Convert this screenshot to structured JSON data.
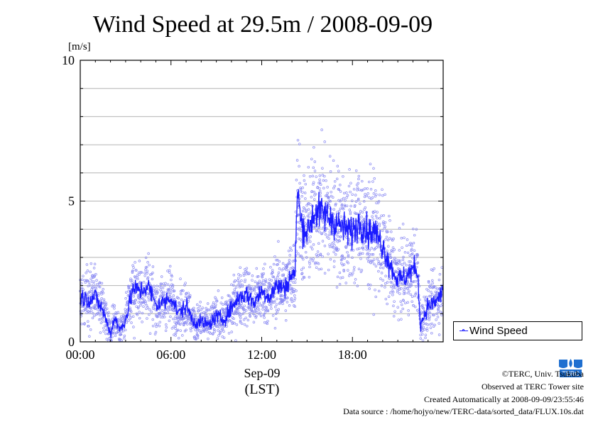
{
  "chart_data": {
    "type": "scatter",
    "title": "Wind Speed at 29.5m / 2008-09-09",
    "yunit": "[m/s]",
    "xlabel_date": "Sep-09",
    "xlabel_tz": "(LST)",
    "xlim_hours": [
      0,
      24
    ],
    "ylim": [
      0,
      10
    ],
    "x_ticks": [
      "00:00",
      "06:00",
      "12:00",
      "18:00"
    ],
    "y_ticks": [
      "0",
      "5",
      "10"
    ],
    "grid": true,
    "legend_position": "right",
    "series": [
      {
        "name": "Wind Speed",
        "color": "#1a1aff",
        "profile_hours": [
          0,
          0.5,
          1,
          1.5,
          2,
          2.3,
          2.6,
          3,
          3.5,
          4,
          4.5,
          5,
          5.5,
          6,
          6.5,
          7,
          7.5,
          8,
          8.5,
          9,
          9.5,
          10,
          10.5,
          11,
          11.5,
          12,
          12.5,
          13,
          13.5,
          14,
          14.2,
          14.35,
          14.6,
          15,
          15.5,
          16,
          16.5,
          17,
          17.5,
          18,
          18.5,
          19,
          19.5,
          20,
          20.5,
          21,
          21.5,
          22,
          22.3,
          22.5,
          23,
          23.5,
          24
        ],
        "profile_values": [
          1.6,
          1.5,
          1.6,
          1.1,
          0.3,
          0.9,
          0.4,
          0.8,
          1.9,
          1.8,
          2.0,
          1.3,
          1.4,
          1.6,
          1.0,
          1.3,
          0.7,
          0.7,
          0.6,
          0.9,
          0.8,
          1.2,
          1.6,
          1.7,
          1.4,
          1.8,
          1.6,
          2.0,
          1.9,
          2.4,
          2.3,
          5.5,
          4.2,
          3.9,
          4.6,
          4.6,
          4.4,
          4.2,
          4.0,
          3.9,
          4.3,
          3.9,
          3.9,
          3.4,
          2.7,
          2.2,
          2.3,
          2.6,
          2.5,
          0.6,
          1.3,
          1.4,
          1.8
        ]
      }
    ]
  },
  "legend": {
    "label": "Wind Speed"
  },
  "footer": {
    "copyright": "©TERC, Univ. Tsukuba",
    "observed": "Observed at TERC Tower site",
    "created": "Created Automatically at 2008-09-09/23:55:46",
    "source": "Data source : /home/hojyo/new/TERC-data/sorted_data/FLUX.10s.dat",
    "logo_text": "TERC"
  }
}
